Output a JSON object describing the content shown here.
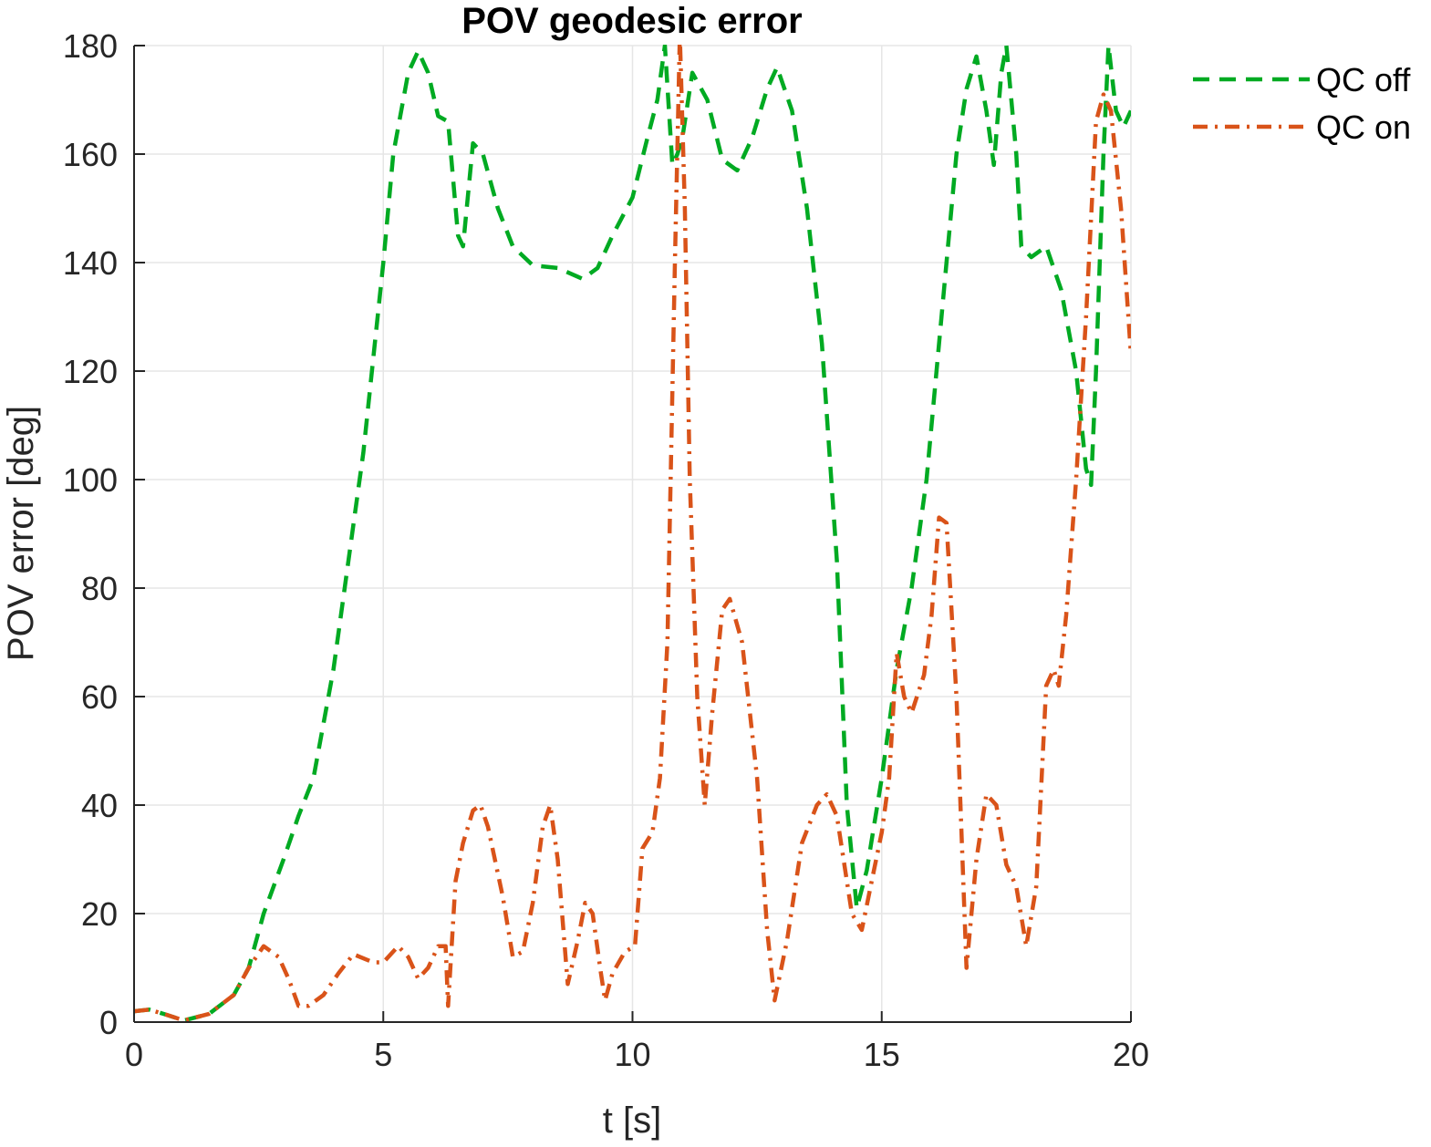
{
  "chart_data": {
    "type": "line",
    "title": "POV geodesic error",
    "xlabel": "t [s]",
    "ylabel": "POV error [deg]",
    "xlim": [
      0,
      20
    ],
    "ylim": [
      0,
      180
    ],
    "xticks": [
      0,
      5,
      10,
      15,
      20
    ],
    "yticks": [
      0,
      20,
      40,
      60,
      80,
      100,
      120,
      140,
      160,
      180
    ],
    "grid": true,
    "legend_position": "outside-top-right",
    "series": [
      {
        "name": "QC off",
        "color": "#00aa22",
        "style": "dashed",
        "points": [
          [
            0,
            2
          ],
          [
            0.3,
            2.3
          ],
          [
            0.6,
            1.5
          ],
          [
            1.0,
            0.3
          ],
          [
            1.5,
            1.5
          ],
          [
            2.0,
            5
          ],
          [
            2.3,
            10
          ],
          [
            2.6,
            20
          ],
          [
            3.0,
            30
          ],
          [
            3.3,
            38
          ],
          [
            3.6,
            45
          ],
          [
            4.0,
            65
          ],
          [
            4.3,
            85
          ],
          [
            4.6,
            105
          ],
          [
            5.0,
            140
          ],
          [
            5.2,
            160
          ],
          [
            5.5,
            175
          ],
          [
            5.7,
            179
          ],
          [
            5.9,
            175
          ],
          [
            6.1,
            167
          ],
          [
            6.3,
            166
          ],
          [
            6.5,
            145
          ],
          [
            6.6,
            143
          ],
          [
            6.8,
            162
          ],
          [
            7.0,
            160
          ],
          [
            7.3,
            150
          ],
          [
            7.6,
            143
          ],
          [
            8.0,
            139.5
          ],
          [
            8.5,
            139
          ],
          [
            9.0,
            137
          ],
          [
            9.3,
            139
          ],
          [
            9.6,
            145
          ],
          [
            10.0,
            152
          ],
          [
            10.3,
            163
          ],
          [
            10.5,
            170
          ],
          [
            10.65,
            180
          ],
          [
            10.8,
            158
          ],
          [
            10.9,
            160
          ],
          [
            11.0,
            163
          ],
          [
            11.2,
            175
          ],
          [
            11.5,
            170
          ],
          [
            11.8,
            159
          ],
          [
            12.1,
            157
          ],
          [
            12.4,
            163
          ],
          [
            12.7,
            172
          ],
          [
            12.9,
            176
          ],
          [
            13.2,
            168
          ],
          [
            13.5,
            150
          ],
          [
            13.8,
            125
          ],
          [
            14.1,
            85
          ],
          [
            14.3,
            40
          ],
          [
            14.5,
            21
          ],
          [
            14.7,
            28
          ],
          [
            15.0,
            45
          ],
          [
            15.3,
            65
          ],
          [
            15.6,
            80
          ],
          [
            15.9,
            100
          ],
          [
            16.2,
            130
          ],
          [
            16.5,
            160
          ],
          [
            16.7,
            172
          ],
          [
            16.9,
            178
          ],
          [
            17.1,
            168
          ],
          [
            17.25,
            158
          ],
          [
            17.4,
            175
          ],
          [
            17.5,
            180
          ],
          [
            17.7,
            160
          ],
          [
            17.8,
            143
          ],
          [
            18.0,
            141
          ],
          [
            18.3,
            143
          ],
          [
            18.6,
            135
          ],
          [
            18.9,
            120
          ],
          [
            19.1,
            102
          ],
          [
            19.2,
            99
          ],
          [
            19.3,
            120
          ],
          [
            19.45,
            160
          ],
          [
            19.55,
            180
          ],
          [
            19.7,
            168
          ],
          [
            19.85,
            165
          ],
          [
            20,
            168
          ]
        ]
      },
      {
        "name": "QC on",
        "color": "#d95319",
        "style": "dash-dot",
        "points": [
          [
            0,
            2
          ],
          [
            0.3,
            2.3
          ],
          [
            0.6,
            1.5
          ],
          [
            1.0,
            0.3
          ],
          [
            1.5,
            1.5
          ],
          [
            2.0,
            5
          ],
          [
            2.3,
            10
          ],
          [
            2.6,
            14
          ],
          [
            2.9,
            12
          ],
          [
            3.1,
            8
          ],
          [
            3.3,
            3
          ],
          [
            3.5,
            3
          ],
          [
            3.8,
            5
          ],
          [
            4.1,
            9
          ],
          [
            4.4,
            12.5
          ],
          [
            4.8,
            11
          ],
          [
            5.0,
            11
          ],
          [
            5.3,
            14
          ],
          [
            5.5,
            12
          ],
          [
            5.7,
            8
          ],
          [
            5.9,
            10
          ],
          [
            6.1,
            14
          ],
          [
            6.25,
            14
          ],
          [
            6.3,
            3
          ],
          [
            6.45,
            26
          ],
          [
            6.6,
            33
          ],
          [
            6.8,
            39
          ],
          [
            6.95,
            40
          ],
          [
            7.1,
            36
          ],
          [
            7.4,
            23
          ],
          [
            7.6,
            12
          ],
          [
            7.8,
            13
          ],
          [
            8.0,
            22
          ],
          [
            8.2,
            36
          ],
          [
            8.35,
            40
          ],
          [
            8.5,
            30
          ],
          [
            8.7,
            7
          ],
          [
            8.9,
            15
          ],
          [
            9.05,
            22
          ],
          [
            9.2,
            20
          ],
          [
            9.35,
            10
          ],
          [
            9.45,
            4
          ],
          [
            9.6,
            9
          ],
          [
            9.85,
            13
          ],
          [
            10.05,
            14
          ],
          [
            10.2,
            32
          ],
          [
            10.4,
            35
          ],
          [
            10.55,
            45
          ],
          [
            10.7,
            70
          ],
          [
            10.85,
            140
          ],
          [
            10.95,
            182
          ],
          [
            11.05,
            150
          ],
          [
            11.15,
            100
          ],
          [
            11.3,
            60
          ],
          [
            11.45,
            40
          ],
          [
            11.6,
            57
          ],
          [
            11.8,
            76
          ],
          [
            11.95,
            78
          ],
          [
            12.2,
            70
          ],
          [
            12.5,
            45
          ],
          [
            12.7,
            17
          ],
          [
            12.85,
            4
          ],
          [
            13.1,
            15
          ],
          [
            13.4,
            33
          ],
          [
            13.7,
            40
          ],
          [
            13.9,
            42
          ],
          [
            14.1,
            38
          ],
          [
            14.4,
            20
          ],
          [
            14.6,
            17
          ],
          [
            14.8,
            26
          ],
          [
            15.0,
            35
          ],
          [
            15.15,
            45
          ],
          [
            15.3,
            68
          ],
          [
            15.45,
            60
          ],
          [
            15.6,
            57
          ],
          [
            15.85,
            64
          ],
          [
            16.0,
            75
          ],
          [
            16.15,
            93
          ],
          [
            16.3,
            92
          ],
          [
            16.5,
            60
          ],
          [
            16.7,
            10
          ],
          [
            16.9,
            30
          ],
          [
            17.1,
            42
          ],
          [
            17.3,
            40
          ],
          [
            17.5,
            29
          ],
          [
            17.7,
            25
          ],
          [
            17.9,
            14
          ],
          [
            18.1,
            25
          ],
          [
            18.3,
            62
          ],
          [
            18.45,
            65
          ],
          [
            18.55,
            62
          ],
          [
            18.7,
            75
          ],
          [
            18.9,
            100
          ],
          [
            19.1,
            130
          ],
          [
            19.3,
            166
          ],
          [
            19.45,
            171
          ],
          [
            19.6,
            168
          ],
          [
            19.8,
            150
          ],
          [
            20,
            123
          ]
        ]
      }
    ]
  }
}
